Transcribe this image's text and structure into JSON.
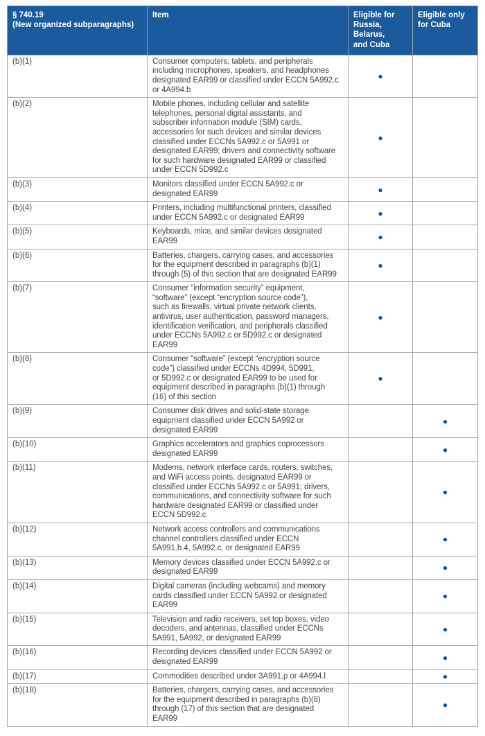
{
  "colors": {
    "header_background": "#1b5b9d",
    "header_text": "#ffffff",
    "bullet": "#0d5296",
    "body_text": "#43484c",
    "border": "#a8a8a8"
  },
  "bullet_glyph": "●",
  "table": {
    "headers": {
      "subparagraphs": "§ 740.19\n(New organized subparagraphs)",
      "item": "Item",
      "eligible_rbc": "Eligible for\nRussia, Belarus,\nand Cuba",
      "eligible_cuba": "Eligible only\nfor Cuba"
    },
    "rows": [
      {
        "para": "(b)(1)",
        "item": "Consumer computers, tablets, and peripherals\nincluding microphones, speakers, and headphones\ndesignated EAR99 or classified under ECCN 5A992.c\nor 4A994.b",
        "rbc_dot": "●",
        "cuba_dot": ""
      },
      {
        "para": "(b)(2)",
        "item": "Mobile phones, including cellular and satellite\ntelephones, personal digital assistants, and\nsubscriber information module (SIM) cards,\naccessories for such devices and similar devices\nclassified under ECCNs 5A992.c or 5A991 or\ndesignated EAR99; drivers and connectivity software\nfor such hardware designated EAR99 or classified\nunder ECCN 5D992.c",
        "rbc_dot": "●",
        "cuba_dot": ""
      },
      {
        "para": "(b)(3)",
        "item": "Monitors classified under ECCN 5A992.c or\ndesignated EAR99",
        "rbc_dot": "●",
        "cuba_dot": ""
      },
      {
        "para": "(b)(4)",
        "item": "Printers, including multifunctional printers, classified\nunder ECCN 5A992.c or designated EAR99",
        "rbc_dot": "●",
        "cuba_dot": ""
      },
      {
        "para": "(b)(5)",
        "item": "Keyboards, mice, and similar devices designated\nEAR99",
        "rbc_dot": "●",
        "cuba_dot": ""
      },
      {
        "para": "(b)(6)",
        "item": "Batteries, chargers, carrying cases, and accessories\nfor the equipment described in paragraphs (b)(1)\nthrough (5) of this section that are designated EAR99",
        "rbc_dot": "●",
        "cuba_dot": ""
      },
      {
        "para": "(b)(7)",
        "item": "Consumer “information security” equipment,\n“software” (except “encryption source code”),\nsuch as firewalls, virtual private network clients,\nantivirus, user authentication, password managers,\nidentification verification, and peripherals classified\nunder ECCNs 5A992.c or 5D992.c or designated\nEAR99",
        "rbc_dot": "●",
        "cuba_dot": ""
      },
      {
        "para": "(b)(8)",
        "item": "Consumer “software” (except “encryption source\ncode”) classified under ECCNs 4D994, 5D991,\nor 5D992.c or designated EAR99 to be used for\nequipment described in paragraphs (b)(1) through\n(16) of this section",
        "rbc_dot": "●",
        "cuba_dot": ""
      },
      {
        "para": "(b)(9)",
        "item": "Consumer disk drives and solid-state storage\nequipment classified under ECCN 5A992 or\ndesignated EAR99",
        "rbc_dot": "",
        "cuba_dot": "●"
      },
      {
        "para": "(b)(10)",
        "item": "Graphics accelerators and graphics coprocessors\ndesignated EAR99",
        "rbc_dot": "",
        "cuba_dot": "●"
      },
      {
        "para": "(b)(11)",
        "item": "Modems, network interface cards, routers, switches,\nand WiFi access points, designated EAR99 or\nclassified under ECCNs 5A992.c or 5A991; drivers,\ncommunications, and connectivity software for such\nhardware designated EAR99 or classified under\nECCN 5D992.c",
        "rbc_dot": "",
        "cuba_dot": "●"
      },
      {
        "para": "(b)(12)",
        "item": "Network access controllers and communications\nchannel controllers classified under ECCN\n5A991.b.4, 5A992.c, or designated EAR99",
        "rbc_dot": "",
        "cuba_dot": "●"
      },
      {
        "para": "(b)(13)",
        "item": "Memory devices classified under ECCN 5A992.c or\ndesignated EAR99",
        "rbc_dot": "",
        "cuba_dot": "●"
      },
      {
        "para": "(b)(14)",
        "item": "Digital cameras (including webcams) and memory\ncards classified under ECCN 5A992 or designated\nEAR99",
        "rbc_dot": "",
        "cuba_dot": "●"
      },
      {
        "para": "(b)(15)",
        "item": "Television and radio receivers, set top boxes, video\ndecoders, and antennas, classified under ECCNs\n5A991, 5A992, or designated EAR99",
        "rbc_dot": "",
        "cuba_dot": "●"
      },
      {
        "para": "(b)(16)",
        "item": "Recording devices classified under ECCN 5A992 or\ndesignated EAR99",
        "rbc_dot": "",
        "cuba_dot": "●"
      },
      {
        "para": "(b)(17)",
        "item": "Commodities described under 3A991.p or 4A994.l",
        "rbc_dot": "",
        "cuba_dot": "●"
      },
      {
        "para": "(b)(18)",
        "item": "Batteries, chargers, carrying cases, and accessories\nfor the equipment described in paragraphs (b)(8)\nthrough (17) of this section that are designated\nEAR99",
        "rbc_dot": "",
        "cuba_dot": "●"
      }
    ]
  }
}
